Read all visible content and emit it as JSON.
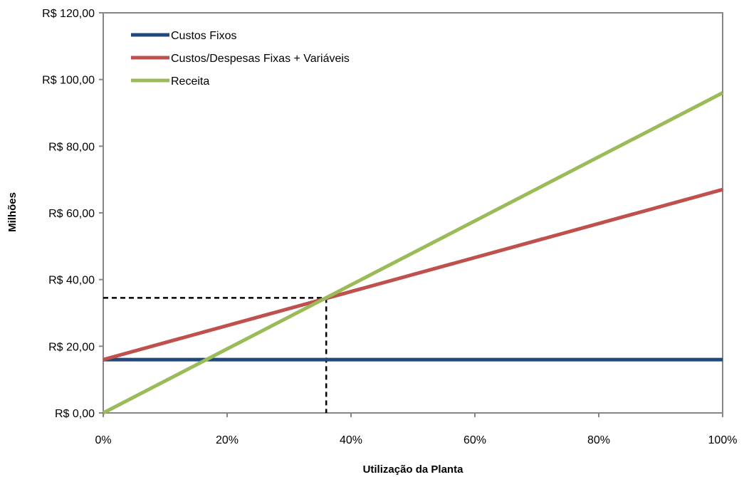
{
  "chart_data": {
    "type": "line",
    "title": "",
    "xlabel": "Utilização da Planta",
    "ylabel": "Milhões",
    "x": [
      0,
      100
    ],
    "x_ticks": [
      0,
      20,
      40,
      60,
      80,
      100
    ],
    "x_tick_labels": [
      "0%",
      "20%",
      "40%",
      "60%",
      "80%",
      "100%"
    ],
    "xlim": [
      0,
      100
    ],
    "ylim": [
      0,
      120
    ],
    "y_ticks": [
      0,
      20,
      40,
      60,
      80,
      100,
      120
    ],
    "y_tick_labels": [
      "R$ 0,00",
      "R$ 20,00",
      "R$ 40,00",
      "R$ 60,00",
      "R$ 80,00",
      "R$ 100,00",
      "R$ 120,00"
    ],
    "grid": false,
    "legend_position": "top-left",
    "series": [
      {
        "name": "Custos Fixos",
        "color": "#1f497d",
        "values": [
          16,
          16
        ]
      },
      {
        "name": "Custos/Despesas Fixas + Variáveis",
        "color": "#c0504d",
        "values": [
          16,
          67
        ]
      },
      {
        "name": "Receita",
        "color": "#9bbb59",
        "values": [
          0,
          96
        ]
      }
    ],
    "annotations": {
      "break_even": {
        "x": 36,
        "y": 34.5,
        "style": "dashed",
        "color": "#000000"
      }
    }
  }
}
